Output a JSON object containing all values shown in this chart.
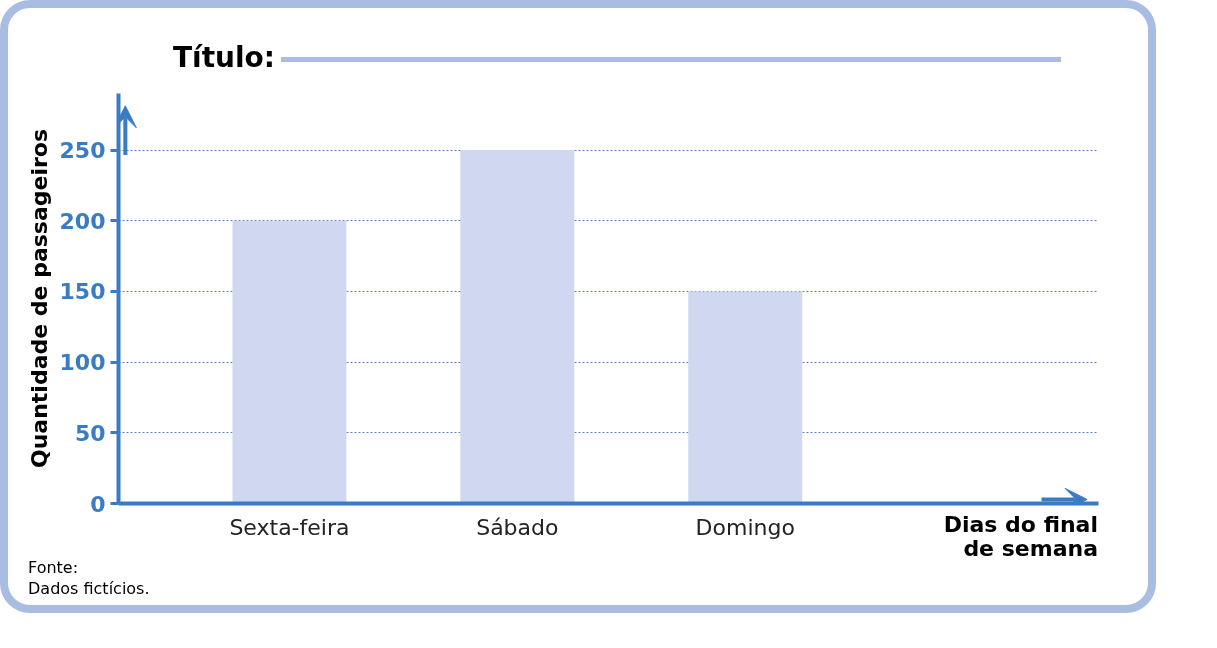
{
  "chart_data": {
    "type": "bar",
    "title": "Título:",
    "xlabel": "Dias do final de semana",
    "ylabel": "Quantidade de passageiros",
    "categories": [
      "Sexta-feira",
      "Sábado",
      "Domingo"
    ],
    "values": [
      200,
      250,
      150
    ],
    "color": "#cfd8f0",
    "ylim": [
      0,
      290
    ],
    "yticks": [
      0,
      50,
      100,
      150,
      200,
      250
    ],
    "grid": "y",
    "annotations": [
      "Fonte: Dados fictícios."
    ]
  }
}
